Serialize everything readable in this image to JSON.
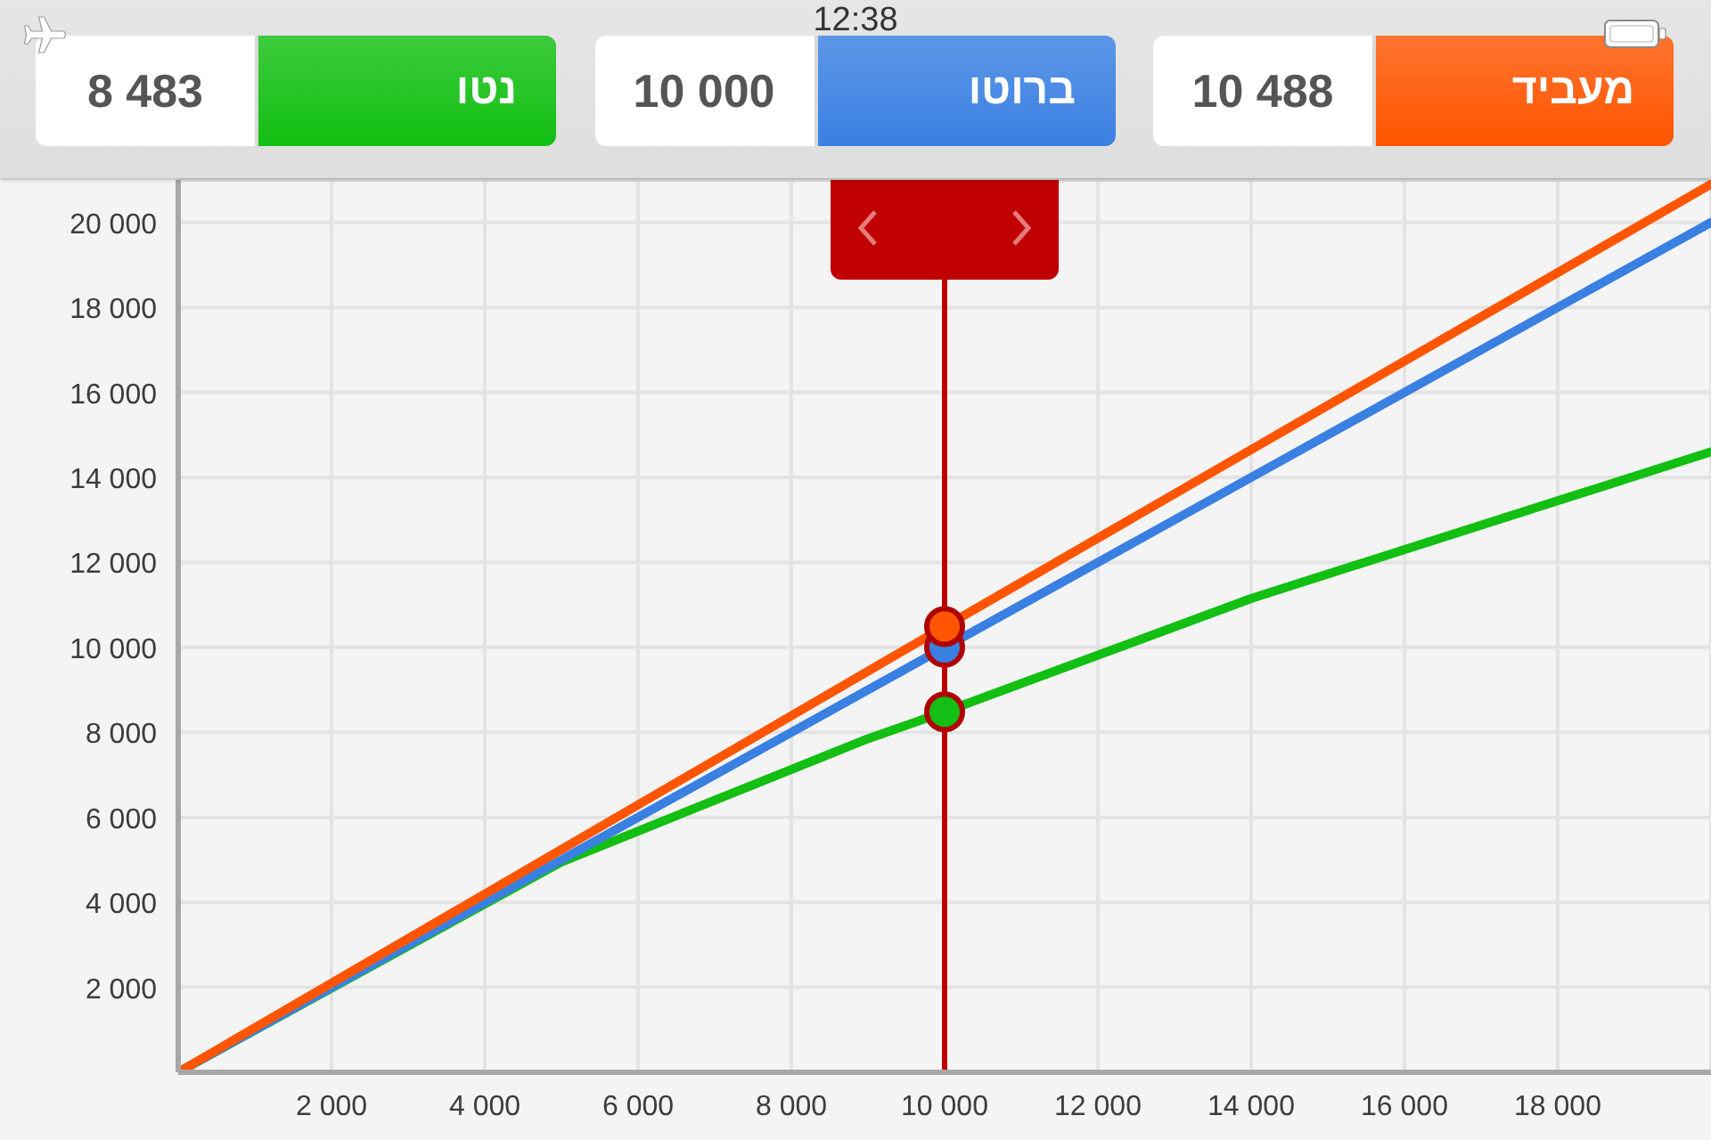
{
  "chart_data": {
    "type": "line",
    "xlim": [
      0,
      20000
    ],
    "xticks": [
      {
        "value": 2000,
        "label": "2 000"
      },
      {
        "value": 4000,
        "label": "4 000"
      },
      {
        "value": 6000,
        "label": "6 000"
      },
      {
        "value": 8000,
        "label": "8 000"
      },
      {
        "value": 10000,
        "label": "10 000"
      },
      {
        "value": 12000,
        "label": "12 000"
      },
      {
        "value": 14000,
        "label": "14 000"
      },
      {
        "value": 16000,
        "label": "16 000"
      },
      {
        "value": 18000,
        "label": "18 000"
      }
    ],
    "ylim": [
      0,
      21000
    ],
    "yticks": [
      {
        "value": 2000,
        "label": "2 000"
      },
      {
        "value": 4000,
        "label": "4 000"
      },
      {
        "value": 6000,
        "label": "6 000"
      },
      {
        "value": 8000,
        "label": "8 000"
      },
      {
        "value": 10000,
        "label": "10 000"
      },
      {
        "value": 12000,
        "label": "12 000"
      },
      {
        "value": 14000,
        "label": "14 000"
      },
      {
        "value": 16000,
        "label": "16 000"
      },
      {
        "value": 18000,
        "label": "18 000"
      },
      {
        "value": 20000,
        "label": "20 000"
      }
    ],
    "grid": true,
    "legend": "top",
    "line_style": "solid",
    "series": [
      {
        "name": "נטו",
        "color": "#12bf12",
        "x": [
          0,
          5000,
          9000,
          10000,
          14000,
          20000
        ],
        "values": [
          0,
          4950,
          7850,
          8483,
          11150,
          14600
        ]
      },
      {
        "name": "ברוטו",
        "color": "#3a80e2",
        "x": [
          0,
          10000,
          20000
        ],
        "values": [
          0,
          10000,
          20000
        ]
      },
      {
        "name": "מעביד",
        "color": "#ff5500",
        "x": [
          0,
          10000,
          20000
        ],
        "values": [
          0,
          10488,
          20900
        ]
      },
      {
        "type": "scatter",
        "marker": "circle",
        "color": "#12bf12",
        "x": [
          10000
        ],
        "values": [
          8483
        ]
      },
      {
        "type": "scatter",
        "marker": "circle",
        "color": "#3a80e2",
        "x": [
          10000
        ],
        "values": [
          10000
        ]
      },
      {
        "type": "scatter",
        "marker": "circle",
        "color": "#ff5500",
        "x": [
          10000
        ],
        "values": [
          10488
        ]
      }
    ],
    "ref_lines": [
      {
        "axis": "x",
        "value": 10000,
        "color": "#c00000"
      }
    ],
    "annotations": [
      "12:38",
      "8 483",
      "10 000",
      "10 488"
    ]
  }
}
